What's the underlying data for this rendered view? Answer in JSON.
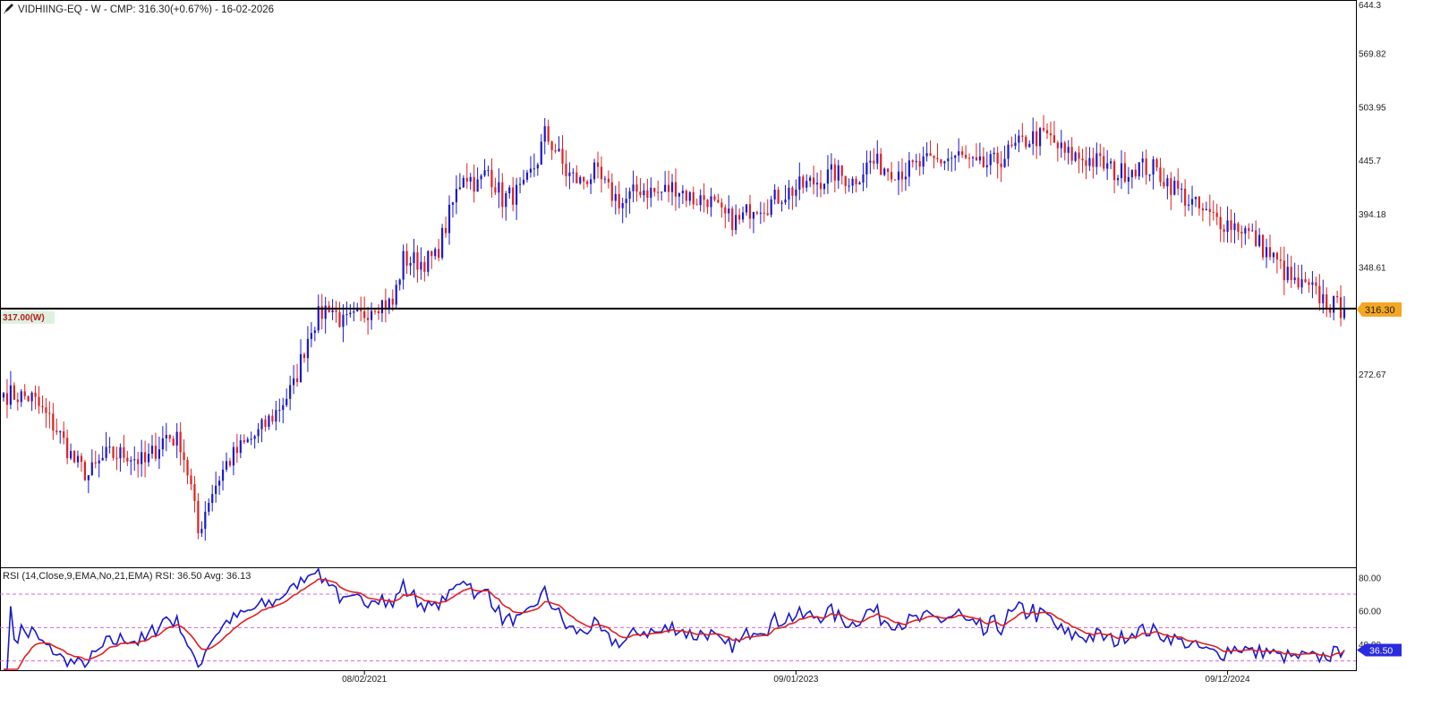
{
  "header": {
    "title": "VIDHIING-EQ - W - CMP: 316.30(+0.67%) - 16-02-2026",
    "icon": "pencil-icon"
  },
  "price_axis": {
    "ticks": [
      "644.3",
      "569.82",
      "503.95",
      "445.7",
      "394.18",
      "348.61",
      "272.67"
    ],
    "current_price_label": "316.30",
    "current_price_color": "#f5a623"
  },
  "hline": {
    "label": "317.00(W)",
    "value": 317.0
  },
  "date_axis": {
    "labels": [
      "08/02/2021",
      "09/01/2023",
      "09/12/2024"
    ]
  },
  "rsi": {
    "label": "RSI (14,Close,9,EMA,No,21,EMA) RSI: 36.50 Avg: 36.13",
    "ticks": [
      "80.00",
      "60.00",
      "40.00"
    ],
    "current_label": "36.50",
    "levels": [
      70,
      50,
      30
    ]
  },
  "colors": {
    "up": "#1a1acc",
    "down": "#e02020",
    "rsi_line": "#1a1acc",
    "rsi_avg": "#e02020",
    "guide": "#d46ad4"
  },
  "chart_data": [
    {
      "type": "candlestick",
      "title": "VIDHIING-EQ - W - CMP: 316.30(+0.67%) - 16-02-2026",
      "scale": "log",
      "ylim": [
        180,
        644.3
      ],
      "x_tick_labels": [
        "08/02/2021",
        "09/01/2023",
        "09/12/2024"
      ],
      "horizontal_line": 317.0,
      "last_close": 316.3,
      "close_anchors": [
        [
          0,
          261
        ],
        [
          8,
          258
        ],
        [
          15,
          240
        ],
        [
          20,
          223
        ],
        [
          24,
          216
        ],
        [
          29,
          226
        ],
        [
          35,
          227
        ],
        [
          40,
          222
        ],
        [
          46,
          237
        ],
        [
          50,
          233
        ],
        [
          53,
          210
        ],
        [
          55,
          189
        ],
        [
          58,
          205
        ],
        [
          63,
          222
        ],
        [
          67,
          230
        ],
        [
          72,
          238
        ],
        [
          77,
          250
        ],
        [
          82,
          265
        ],
        [
          87,
          305
        ],
        [
          92,
          320
        ],
        [
          96,
          306
        ],
        [
          101,
          311
        ],
        [
          105,
          322
        ],
        [
          110,
          320
        ],
        [
          113,
          355
        ],
        [
          118,
          353
        ],
        [
          122,
          356
        ],
        [
          125,
          383
        ],
        [
          130,
          434
        ],
        [
          134,
          421
        ],
        [
          137,
          436
        ],
        [
          141,
          408
        ],
        [
          147,
          416
        ],
        [
          151,
          447
        ],
        [
          153,
          473
        ],
        [
          156,
          457
        ],
        [
          159,
          433
        ],
        [
          163,
          424
        ],
        [
          167,
          433
        ],
        [
          171,
          415
        ],
        [
          175,
          404
        ],
        [
          180,
          418
        ],
        [
          185,
          413
        ],
        [
          190,
          420
        ],
        [
          195,
          407
        ],
        [
          199,
          409
        ],
        [
          203,
          392
        ],
        [
          208,
          387
        ],
        [
          212,
          403
        ],
        [
          216,
          403
        ],
        [
          220,
          412
        ],
        [
          225,
          419
        ],
        [
          230,
          425
        ],
        [
          235,
          433
        ],
        [
          240,
          425
        ],
        [
          245,
          444
        ],
        [
          250,
          438
        ],
        [
          255,
          435
        ],
        [
          260,
          442
        ],
        [
          265,
          446
        ],
        [
          270,
          450
        ],
        [
          275,
          438
        ],
        [
          280,
          443
        ],
        [
          285,
          456
        ],
        [
          290,
          469
        ],
        [
          295,
          471
        ],
        [
          300,
          452
        ],
        [
          305,
          448
        ],
        [
          310,
          443
        ],
        [
          315,
          432
        ],
        [
          320,
          440
        ],
        [
          325,
          437
        ],
        [
          330,
          422
        ],
        [
          335,
          406
        ],
        [
          340,
          393
        ],
        [
          345,
          387
        ],
        [
          350,
          382
        ],
        [
          355,
          368
        ],
        [
          360,
          352
        ],
        [
          365,
          335
        ],
        [
          370,
          330
        ],
        [
          375,
          320
        ],
        [
          379,
          316.3
        ]
      ]
    },
    {
      "type": "line",
      "title": "RSI (14,Close,9,EMA,No,21,EMA) RSI: 36.50 Avg: 36.13",
      "series": [
        {
          "name": "RSI",
          "last": 36.5
        },
        {
          "name": "Avg",
          "last": 36.13
        }
      ],
      "ylim": [
        25,
        85
      ],
      "guide_levels": [
        70,
        50,
        30
      ]
    }
  ]
}
